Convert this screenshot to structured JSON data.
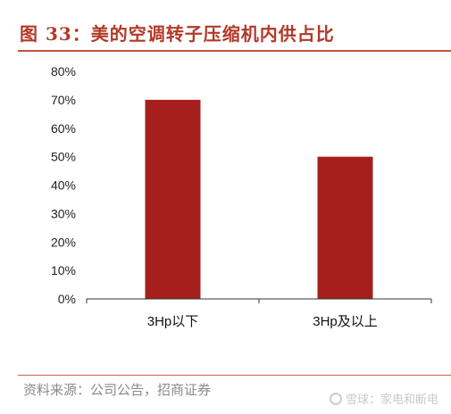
{
  "header": {
    "title": "图 33：美的空调转子压缩机内供占比"
  },
  "footer": {
    "source": "资料来源：公司公告，招商证券",
    "watermark": "雪球：家电和断电"
  },
  "colors": {
    "bar": "#a51f1c",
    "title": "#b2392a",
    "rule": "#c0553f",
    "axis": "#333333"
  },
  "chart_data": {
    "type": "bar",
    "categories": [
      "3Hp以下",
      "3Hp及以上"
    ],
    "values": [
      70,
      50
    ],
    "unit": "%",
    "ylim": [
      0,
      80
    ],
    "yticks": [
      0,
      10,
      20,
      30,
      40,
      50,
      60,
      70,
      80
    ],
    "ytick_labels": [
      "0%",
      "10%",
      "20%",
      "30%",
      "40%",
      "50%",
      "60%",
      "70%",
      "80%"
    ],
    "grid": false,
    "legend": "none"
  }
}
